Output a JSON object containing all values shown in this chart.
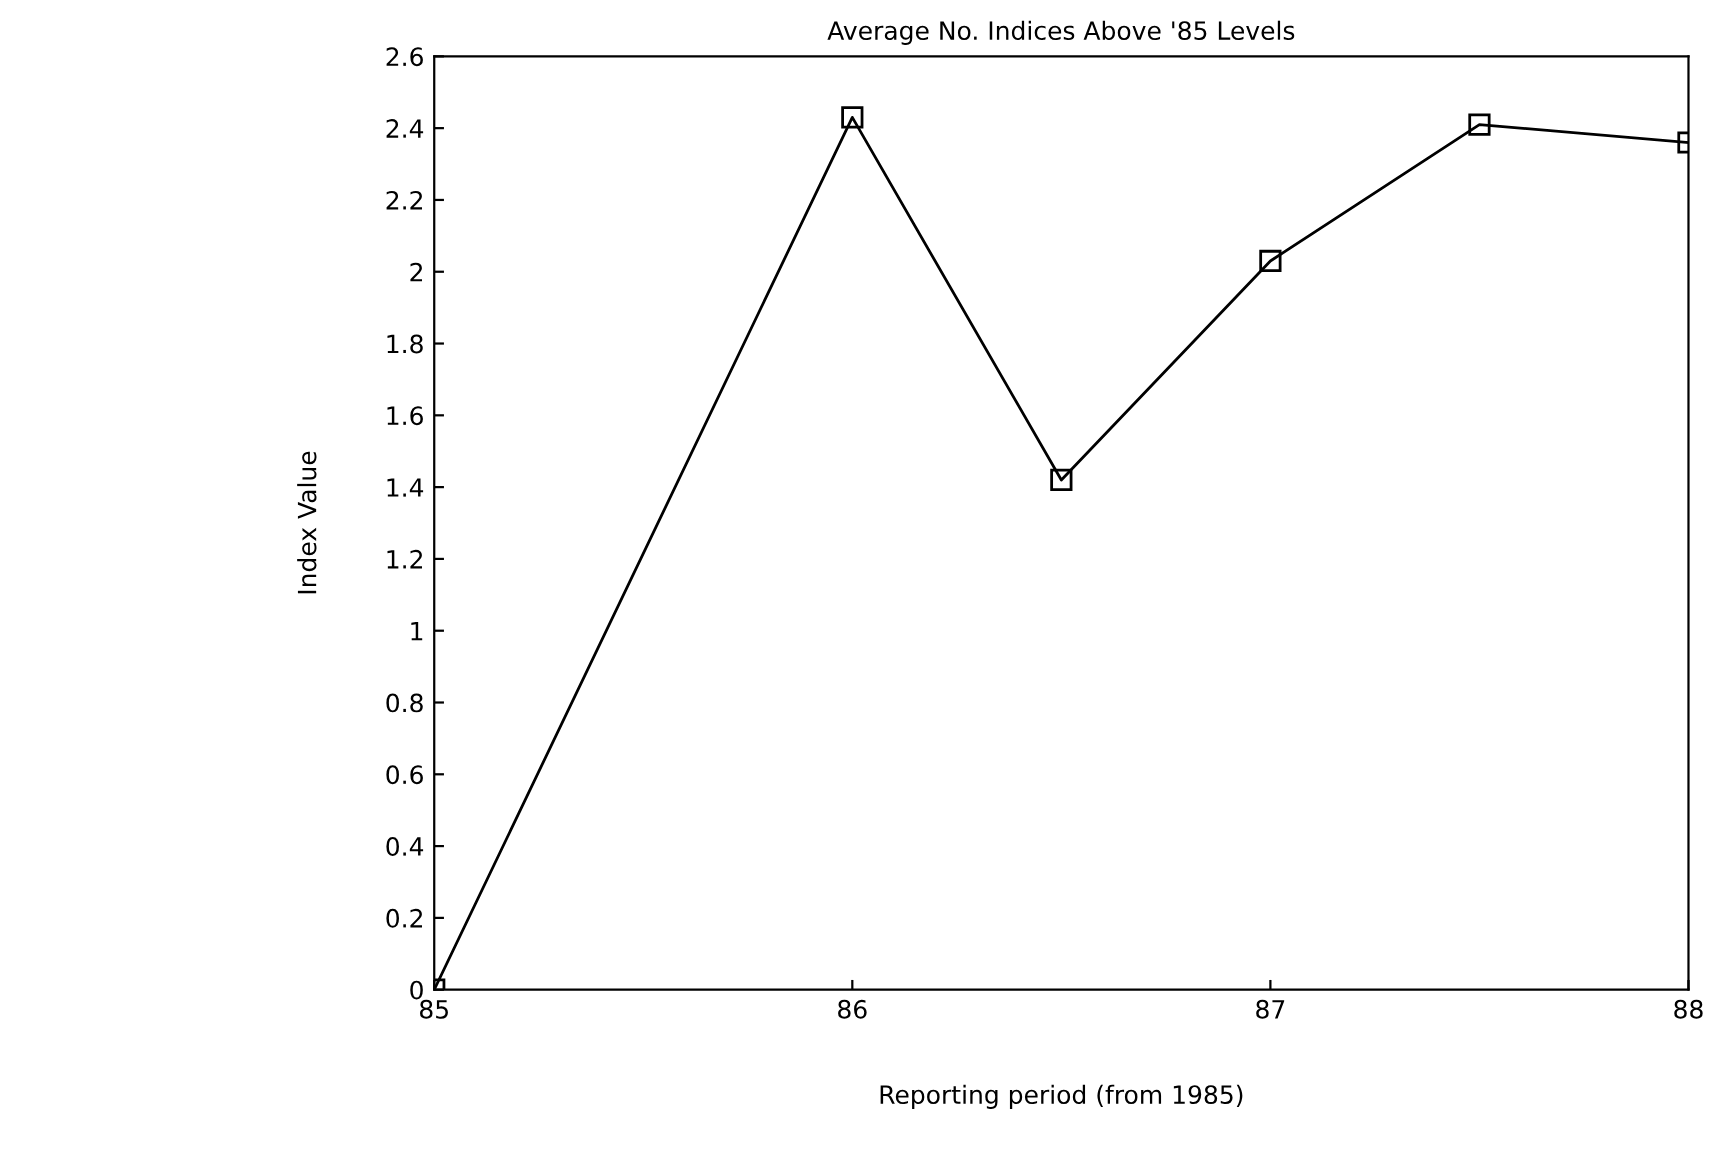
{
  "chart_data": {
    "type": "line",
    "title": "Average No. Indices Above '85 Levels",
    "xlabel": "Reporting period (from 1985)",
    "ylabel": "Index Value",
    "x": [
      85,
      86,
      86.5,
      87,
      87.5,
      88
    ],
    "series": [
      {
        "color": "#000000",
        "values": [
          0,
          2.43,
          1.42,
          2.03,
          2.41,
          2.36
        ]
      }
    ],
    "xlim": [
      85,
      88
    ],
    "xticks": [
      85,
      86,
      87,
      88
    ],
    "ylim": [
      0,
      2.6
    ],
    "yticks": [
      0,
      0.2,
      0.4,
      0.6,
      0.8,
      1,
      1.2,
      1.4,
      1.6,
      1.8,
      2,
      2.2,
      2.4,
      2.6
    ],
    "marker": "square",
    "line_style": "solid",
    "grid": false,
    "legend": false
  }
}
